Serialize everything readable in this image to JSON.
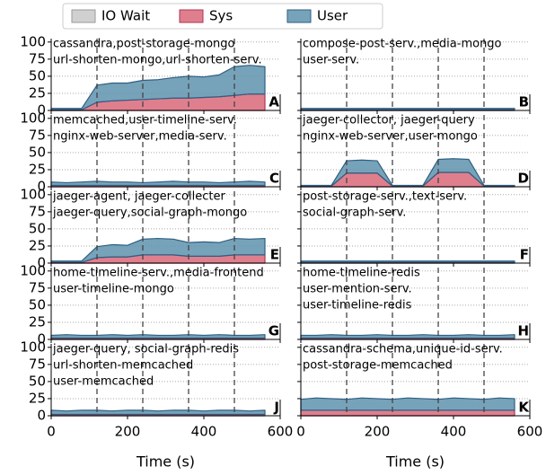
{
  "legend": [
    {
      "name": "IO Wait",
      "color": "#c8c8c8",
      "edge": "#9a9a9a"
    },
    {
      "name": "Sys",
      "color": "#d9687a",
      "edge": "#b2344f"
    },
    {
      "name": "User",
      "color": "#5f93ae",
      "edge": "#2e5f82"
    }
  ],
  "axes": {
    "xlabel": "Time (s)",
    "xlim": [
      0,
      600
    ],
    "xticks": [
      0,
      200,
      400,
      600
    ],
    "ylim": [
      0,
      105
    ],
    "yticks": [
      0,
      25,
      50,
      75,
      100
    ],
    "vlines": [
      120,
      240,
      360,
      480
    ],
    "grid": true
  },
  "chart_data": [
    {
      "type": "area",
      "stacked": true,
      "label": "A",
      "title": [
        "cassandra,post-storage-mongo",
        "url-shorten-mongo,url-shorten-serv."
      ],
      "x": [
        0,
        40,
        80,
        120,
        160,
        200,
        240,
        280,
        320,
        360,
        400,
        440,
        480,
        520,
        560
      ],
      "series": [
        {
          "values": [
            0,
            0,
            0,
            0,
            0,
            0,
            0,
            0,
            0,
            0,
            0,
            0,
            0,
            0,
            0
          ]
        },
        {
          "values": [
            1,
            1,
            1,
            12,
            14,
            15,
            16,
            17,
            18,
            18,
            19,
            20,
            22,
            24,
            24
          ]
        },
        {
          "values": [
            2,
            2,
            2,
            25,
            26,
            25,
            28,
            28,
            30,
            32,
            30,
            32,
            42,
            42,
            40
          ]
        }
      ]
    },
    {
      "type": "area",
      "stacked": true,
      "label": "B",
      "title": [
        "compose-post-serv.,media-mongo",
        "user-serv."
      ],
      "x": [
        0,
        40,
        80,
        120,
        160,
        200,
        240,
        280,
        320,
        360,
        400,
        440,
        480,
        520,
        560
      ],
      "series": [
        {
          "values": [
            0,
            0,
            0,
            0,
            0,
            0,
            0,
            0,
            0,
            0,
            0,
            0,
            0,
            0,
            0
          ]
        },
        {
          "values": [
            1,
            1,
            1,
            1,
            1,
            1,
            1,
            1,
            1,
            1,
            1,
            1,
            1,
            1,
            1
          ]
        },
        {
          "values": [
            2,
            2,
            2,
            2,
            2,
            2,
            2,
            2,
            2,
            2,
            2,
            2,
            2,
            2,
            2
          ]
        }
      ]
    },
    {
      "type": "area",
      "stacked": true,
      "label": "C",
      "title": [
        "memcached,user-timeline-serv.",
        "nginx-web-server,media-serv."
      ],
      "x": [
        0,
        40,
        80,
        120,
        160,
        200,
        240,
        280,
        320,
        360,
        400,
        440,
        480,
        520,
        560
      ],
      "series": [
        {
          "values": [
            0,
            0,
            0,
            0,
            0,
            0,
            0,
            0,
            0,
            0,
            0,
            0,
            0,
            0,
            0
          ]
        },
        {
          "values": [
            2,
            2,
            2,
            2,
            2,
            2,
            2,
            2,
            2,
            2,
            2,
            2,
            2,
            2,
            2
          ]
        },
        {
          "values": [
            5,
            4,
            5,
            6,
            5,
            5,
            4,
            5,
            6,
            5,
            5,
            4,
            5,
            6,
            5
          ]
        }
      ]
    },
    {
      "type": "area",
      "stacked": true,
      "label": "D",
      "title": [
        "jaeger-collector, jaeger-query",
        "nginx-web-server,user-mongo"
      ],
      "x": [
        0,
        40,
        80,
        120,
        160,
        200,
        240,
        280,
        320,
        360,
        400,
        440,
        480,
        520,
        560
      ],
      "series": [
        {
          "values": [
            0,
            0,
            0,
            0,
            0,
            0,
            0,
            0,
            0,
            0,
            0,
            0,
            0,
            0,
            0
          ]
        },
        {
          "values": [
            1,
            1,
            1,
            20,
            20,
            20,
            1,
            1,
            1,
            21,
            21,
            21,
            1,
            1,
            1
          ]
        },
        {
          "values": [
            1,
            1,
            1,
            18,
            19,
            18,
            1,
            1,
            1,
            19,
            20,
            19,
            1,
            1,
            1
          ]
        }
      ]
    },
    {
      "type": "area",
      "stacked": true,
      "label": "E",
      "title": [
        "jaeger-agent, jaeger-collecter",
        "jaeger-query,social-graph-mongo"
      ],
      "x": [
        0,
        40,
        80,
        120,
        160,
        200,
        240,
        280,
        320,
        360,
        400,
        440,
        480,
        520,
        560
      ],
      "series": [
        {
          "values": [
            0,
            0,
            0,
            0,
            0,
            0,
            0,
            0,
            0,
            0,
            0,
            0,
            0,
            0,
            0
          ]
        },
        {
          "values": [
            1,
            1,
            1,
            8,
            9,
            9,
            12,
            12,
            12,
            10,
            10,
            10,
            12,
            12,
            12
          ]
        },
        {
          "values": [
            2,
            2,
            2,
            16,
            18,
            17,
            23,
            24,
            23,
            20,
            21,
            20,
            24,
            23,
            24
          ]
        }
      ]
    },
    {
      "type": "area",
      "stacked": true,
      "label": "F",
      "title": [
        "post-storage-serv.,text-serv.",
        "social-graph-serv."
      ],
      "x": [
        0,
        40,
        80,
        120,
        160,
        200,
        240,
        280,
        320,
        360,
        400,
        440,
        480,
        520,
        560
      ],
      "series": [
        {
          "values": [
            0,
            0,
            0,
            0,
            0,
            0,
            0,
            0,
            0,
            0,
            0,
            0,
            0,
            0,
            0
          ]
        },
        {
          "values": [
            1,
            1,
            1,
            1,
            1,
            1,
            1,
            1,
            1,
            1,
            1,
            1,
            1,
            1,
            1
          ]
        },
        {
          "values": [
            2,
            2,
            2,
            2,
            2,
            2,
            2,
            2,
            2,
            2,
            2,
            2,
            2,
            2,
            2
          ]
        }
      ]
    },
    {
      "type": "area",
      "stacked": true,
      "label": "G",
      "title": [
        "home-timeline-serv.,media-frontend",
        "user-timeline-mongo"
      ],
      "x": [
        0,
        40,
        80,
        120,
        160,
        200,
        240,
        280,
        320,
        360,
        400,
        440,
        480,
        520,
        560
      ],
      "series": [
        {
          "values": [
            0,
            0,
            0,
            0,
            0,
            0,
            0,
            0,
            0,
            0,
            0,
            0,
            0,
            0,
            0
          ]
        },
        {
          "values": [
            2,
            2,
            2,
            2,
            2,
            2,
            2,
            2,
            2,
            2,
            2,
            2,
            2,
            2,
            2
          ]
        },
        {
          "values": [
            4,
            5,
            4,
            4,
            5,
            4,
            5,
            4,
            4,
            5,
            4,
            5,
            4,
            4,
            5
          ]
        }
      ]
    },
    {
      "type": "area",
      "stacked": true,
      "label": "H",
      "title": [
        "home-timeline-redis",
        "user-mention-serv.",
        "user-timeline-redis"
      ],
      "x": [
        0,
        40,
        80,
        120,
        160,
        200,
        240,
        280,
        320,
        360,
        400,
        440,
        480,
        520,
        560
      ],
      "series": [
        {
          "values": [
            0,
            0,
            0,
            0,
            0,
            0,
            0,
            0,
            0,
            0,
            0,
            0,
            0,
            0,
            0
          ]
        },
        {
          "values": [
            2,
            2,
            2,
            2,
            2,
            2,
            2,
            2,
            2,
            2,
            2,
            2,
            2,
            2,
            2
          ]
        },
        {
          "values": [
            4,
            4,
            5,
            4,
            4,
            5,
            4,
            4,
            5,
            4,
            4,
            5,
            4,
            4,
            5
          ]
        }
      ]
    },
    {
      "type": "area",
      "stacked": true,
      "label": "J",
      "title": [
        "jaeger-query, social-graph-redis",
        "url-shorten-memcached",
        "user-memcached"
      ],
      "x": [
        0,
        40,
        80,
        120,
        160,
        200,
        240,
        280,
        320,
        360,
        400,
        440,
        480,
        520,
        560
      ],
      "series": [
        {
          "values": [
            0,
            0,
            0,
            0,
            0,
            0,
            0,
            0,
            0,
            0,
            0,
            0,
            0,
            0,
            0
          ]
        },
        {
          "values": [
            2,
            2,
            2,
            2,
            2,
            2,
            2,
            2,
            2,
            2,
            2,
            2,
            2,
            2,
            2
          ]
        },
        {
          "values": [
            6,
            5,
            6,
            6,
            5,
            6,
            6,
            5,
            6,
            6,
            5,
            6,
            6,
            5,
            6
          ]
        }
      ]
    },
    {
      "type": "area",
      "stacked": true,
      "label": "K",
      "title": [
        "cassandra-schema,unique-id-serv.",
        "post-storage-memcached"
      ],
      "x": [
        0,
        40,
        80,
        120,
        160,
        200,
        240,
        280,
        320,
        360,
        400,
        440,
        480,
        520,
        560
      ],
      "series": [
        {
          "values": [
            0,
            0,
            0,
            0,
            0,
            0,
            0,
            0,
            0,
            0,
            0,
            0,
            0,
            0,
            0
          ]
        },
        {
          "values": [
            8,
            8,
            8,
            8,
            8,
            8,
            8,
            8,
            8,
            8,
            8,
            8,
            8,
            8,
            8
          ]
        },
        {
          "values": [
            16,
            18,
            17,
            16,
            18,
            17,
            16,
            18,
            17,
            16,
            18,
            17,
            16,
            18,
            17
          ]
        }
      ]
    }
  ]
}
